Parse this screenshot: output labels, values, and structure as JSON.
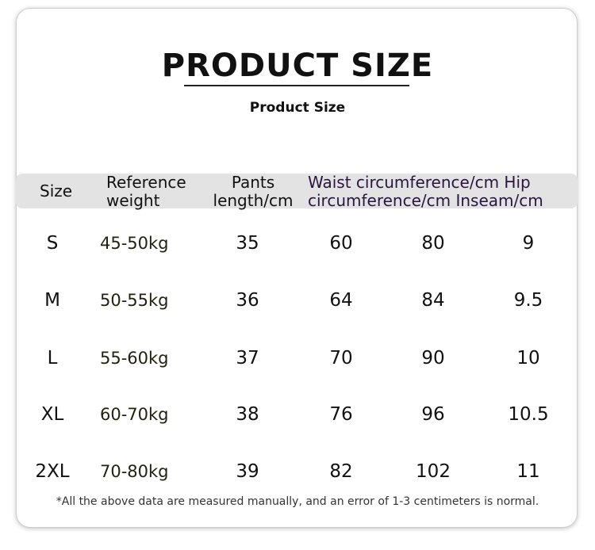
{
  "header": {
    "title": "PRODUCT SIZE",
    "subtitle": "Product Size"
  },
  "table": {
    "headers": [
      "Size",
      "Reference weight",
      "Pants length/cm",
      "Waist circumference/cm Hip circumference/cm Inseam/cm"
    ],
    "rows": [
      [
        "S",
        "45-50kg",
        35,
        60,
        80,
        9
      ],
      [
        "M",
        "50-55kg",
        36,
        64,
        84,
        9.5
      ],
      [
        "L",
        "55-60kg",
        37,
        70,
        90,
        10
      ],
      [
        "XL",
        "60-70kg",
        38,
        76,
        96,
        10.5
      ],
      [
        "2XL",
        "70-80kg",
        39,
        82,
        102,
        11
      ]
    ]
  },
  "footnote": "*All the above data are measured manually, and an error of 1-3 centimeters is normal."
}
